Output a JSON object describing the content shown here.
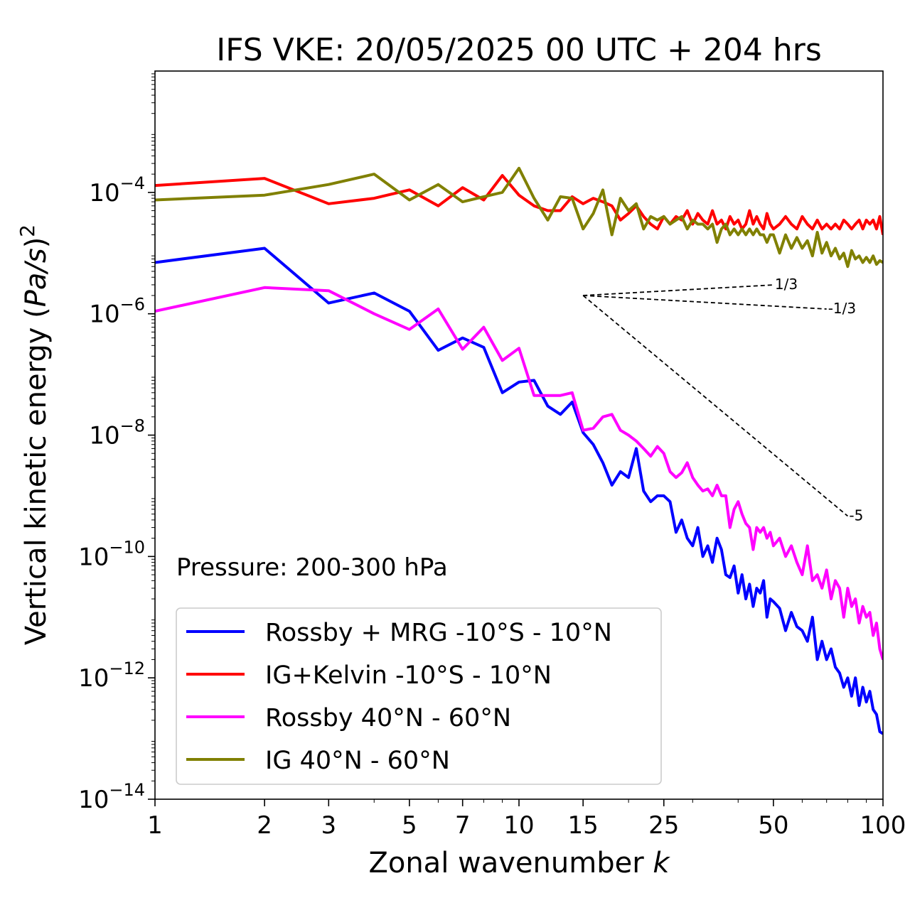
{
  "chart_data": {
    "type": "line",
    "title": "IFS VKE: 20/05/2025 00 UTC + 204 hrs",
    "xlabel": "Zonal wavenumber k",
    "ylabel": "Vertical kinetic energy (Pa/s)²",
    "xscale": "log",
    "yscale": "log",
    "xlim": [
      1,
      100
    ],
    "ylim": [
      1e-14,
      0.01
    ],
    "x_ticks": [
      1,
      2,
      3,
      5,
      7,
      10,
      15,
      25,
      50,
      100
    ],
    "y_ticks": [
      1e-14,
      1e-12,
      1e-10,
      1e-08,
      1e-06,
      0.0001
    ],
    "y_tick_labels": [
      {
        "base": "10",
        "exp": "−14"
      },
      {
        "base": "10",
        "exp": "−12"
      },
      {
        "base": "10",
        "exp": "−10"
      },
      {
        "base": "10",
        "exp": "−8"
      },
      {
        "base": "10",
        "exp": "−6"
      },
      {
        "base": "10",
        "exp": "−4"
      }
    ],
    "grid": false,
    "legend_position": "bottom-left",
    "annotation": "Pressure: 200-300 hPa",
    "reference_lines": [
      {
        "label": "1/3",
        "slope": 0.3333,
        "k_start": 15,
        "k_end": 50,
        "e_start": 2e-06
      },
      {
        "label": "-1/3",
        "slope": -0.3333,
        "k_start": 15,
        "k_end": 70,
        "e_start": 2e-06
      },
      {
        "label": "-5",
        "slope": -5,
        "k_start": 15,
        "k_end": 80,
        "e_start": 2e-06
      }
    ],
    "series": [
      {
        "name": "Rossby + MRG -10°S - 10°N",
        "color": "#0000ff",
        "points": [
          [
            1,
            7e-06
          ],
          [
            2,
            1.2e-05
          ],
          [
            3,
            1.5e-06
          ],
          [
            4,
            2.2e-06
          ],
          [
            5,
            1.1e-06
          ],
          [
            6,
            2.5e-07
          ],
          [
            7,
            4e-07
          ],
          [
            8,
            2.8e-07
          ],
          [
            9,
            5e-08
          ],
          [
            10,
            7.5e-08
          ],
          [
            11,
            8e-08
          ],
          [
            12,
            3e-08
          ],
          [
            13,
            2.2e-08
          ],
          [
            14,
            3.5e-08
          ],
          [
            15,
            1.1e-08
          ],
          [
            16,
            7e-09
          ],
          [
            17,
            3.5e-09
          ],
          [
            18,
            1.5e-09
          ],
          [
            19,
            2.5e-09
          ],
          [
            20,
            2e-09
          ],
          [
            21,
            6e-09
          ],
          [
            22,
            1.2e-09
          ],
          [
            23,
            8e-10
          ],
          [
            24,
            1e-09
          ],
          [
            25,
            1e-09
          ],
          [
            26,
            8e-10
          ],
          [
            27,
            2.5e-10
          ],
          [
            28,
            4e-10
          ],
          [
            29,
            2e-10
          ],
          [
            30,
            1.5e-10
          ],
          [
            31,
            3e-10
          ],
          [
            32,
            1e-10
          ],
          [
            33,
            1.5e-10
          ],
          [
            34,
            8e-11
          ],
          [
            35,
            2e-10
          ],
          [
            36,
            1.3e-10
          ],
          [
            37,
            5e-11
          ],
          [
            38,
            4.5e-11
          ],
          [
            39,
            7e-11
          ],
          [
            40,
            2.5e-11
          ],
          [
            41,
            5e-11
          ],
          [
            42,
            2e-11
          ],
          [
            43,
            3.5e-11
          ],
          [
            44,
            1.5e-11
          ],
          [
            45,
            3e-11
          ],
          [
            46,
            2.5e-11
          ],
          [
            47,
            4e-11
          ],
          [
            48,
            1e-11
          ],
          [
            49,
            2e-11
          ],
          [
            50,
            1.8e-11
          ],
          [
            52,
            1.4e-11
          ],
          [
            54,
            6e-12
          ],
          [
            56,
            1.2e-11
          ],
          [
            58,
            7e-12
          ],
          [
            60,
            6e-12
          ],
          [
            62,
            4e-12
          ],
          [
            64,
            1e-11
          ],
          [
            66,
            2e-12
          ],
          [
            68,
            4e-12
          ],
          [
            70,
            2e-12
          ],
          [
            72,
            3e-12
          ],
          [
            74,
            1.5e-12
          ],
          [
            76,
            1.2e-12
          ],
          [
            78,
            7e-13
          ],
          [
            80,
            1e-12
          ],
          [
            82,
            5e-13
          ],
          [
            84,
            1e-12
          ],
          [
            86,
            3.5e-13
          ],
          [
            88,
            7e-13
          ],
          [
            90,
            4e-13
          ],
          [
            92,
            6e-13
          ],
          [
            94,
            3e-13
          ],
          [
            96,
            2.5e-13
          ],
          [
            98,
            1.3e-13
          ],
          [
            100,
            1.2e-13
          ]
        ]
      },
      {
        "name": "IG+Kelvin -10°S - 10°N",
        "color": "#ff0000",
        "points": [
          [
            1,
            0.00013
          ],
          [
            2,
            0.00017
          ],
          [
            3,
            6.5e-05
          ],
          [
            4,
            8e-05
          ],
          [
            5,
            0.00011
          ],
          [
            6,
            6e-05
          ],
          [
            7,
            0.00012
          ],
          [
            8,
            7.5e-05
          ],
          [
            9,
            0.00019
          ],
          [
            10,
            9e-05
          ],
          [
            11,
            6e-05
          ],
          [
            12,
            5e-05
          ],
          [
            13,
            5e-05
          ],
          [
            14,
            8.5e-05
          ],
          [
            15,
            6.5e-05
          ],
          [
            16,
            8e-05
          ],
          [
            17,
            7e-05
          ],
          [
            18,
            6e-05
          ],
          [
            19,
            3.5e-05
          ],
          [
            20,
            4.5e-05
          ],
          [
            21,
            6e-05
          ],
          [
            22,
            4e-05
          ],
          [
            23,
            3e-05
          ],
          [
            24,
            2.5e-05
          ],
          [
            25,
            4e-05
          ],
          [
            26,
            3e-05
          ],
          [
            27,
            4e-05
          ],
          [
            28,
            3.5e-05
          ],
          [
            29,
            5e-05
          ],
          [
            30,
            3e-05
          ],
          [
            31,
            4.5e-05
          ],
          [
            32,
            3.5e-05
          ],
          [
            33,
            3e-05
          ],
          [
            34,
            5e-05
          ],
          [
            35,
            3e-05
          ],
          [
            36,
            3.5e-05
          ],
          [
            37,
            2.5e-05
          ],
          [
            38,
            4e-05
          ],
          [
            39,
            3e-05
          ],
          [
            40,
            3.5e-05
          ],
          [
            41,
            2.5e-05
          ],
          [
            42,
            3e-05
          ],
          [
            43,
            5e-05
          ],
          [
            44,
            3e-05
          ],
          [
            45,
            4e-05
          ],
          [
            46,
            3e-05
          ],
          [
            47,
            2.5e-05
          ],
          [
            48,
            4.5e-05
          ],
          [
            49,
            3e-05
          ],
          [
            50,
            2.5e-05
          ],
          [
            52,
            3e-05
          ],
          [
            54,
            4e-05
          ],
          [
            56,
            3e-05
          ],
          [
            58,
            2.5e-05
          ],
          [
            60,
            4e-05
          ],
          [
            62,
            3e-05
          ],
          [
            64,
            2.5e-05
          ],
          [
            66,
            3.5e-05
          ],
          [
            68,
            2.5e-05
          ],
          [
            70,
            3e-05
          ],
          [
            72,
            2.5e-05
          ],
          [
            74,
            3e-05
          ],
          [
            76,
            2.5e-05
          ],
          [
            78,
            3.5e-05
          ],
          [
            80,
            3e-05
          ],
          [
            82,
            2.5e-05
          ],
          [
            84,
            3e-05
          ],
          [
            86,
            3.5e-05
          ],
          [
            88,
            2.5e-05
          ],
          [
            90,
            3.5e-05
          ],
          [
            92,
            3e-05
          ],
          [
            94,
            3.5e-05
          ],
          [
            96,
            2.5e-05
          ],
          [
            98,
            4e-05
          ],
          [
            100,
            2e-05
          ]
        ]
      },
      {
        "name": "Rossby 40°N - 60°N",
        "color": "#ff00ff",
        "points": [
          [
            1,
            1.1e-06
          ],
          [
            2,
            2.7e-06
          ],
          [
            3,
            2.4e-06
          ],
          [
            4,
            1e-06
          ],
          [
            5,
            5.5e-07
          ],
          [
            6,
            1.2e-06
          ],
          [
            7,
            2.6e-07
          ],
          [
            8,
            6e-07
          ],
          [
            9,
            1.7e-07
          ],
          [
            10,
            2.7e-07
          ],
          [
            11,
            4.5e-08
          ],
          [
            12,
            4.5e-08
          ],
          [
            13,
            4.5e-08
          ],
          [
            14,
            5e-08
          ],
          [
            15,
            1.2e-08
          ],
          [
            16,
            1.3e-08
          ],
          [
            17,
            2e-08
          ],
          [
            18,
            2.2e-08
          ],
          [
            19,
            1.2e-08
          ],
          [
            20,
            1e-08
          ],
          [
            21,
            8e-09
          ],
          [
            22,
            6e-09
          ],
          [
            23,
            4.5e-09
          ],
          [
            24,
            6.5e-09
          ],
          [
            25,
            5e-09
          ],
          [
            26,
            2.5e-09
          ],
          [
            27,
            2e-09
          ],
          [
            28,
            2.4e-09
          ],
          [
            29,
            3.5e-09
          ],
          [
            30,
            2e-09
          ],
          [
            31,
            1.5e-09
          ],
          [
            32,
            1.2e-09
          ],
          [
            33,
            1.3e-09
          ],
          [
            34,
            1e-09
          ],
          [
            35,
            1.5e-09
          ],
          [
            36,
            1e-09
          ],
          [
            37,
            1e-09
          ],
          [
            38,
            3e-10
          ],
          [
            39,
            6e-10
          ],
          [
            40,
            8e-10
          ],
          [
            41,
            5e-10
          ],
          [
            42,
            3.5e-10
          ],
          [
            43,
            3e-10
          ],
          [
            44,
            1.3e-10
          ],
          [
            45,
            3e-10
          ],
          [
            46,
            2.5e-10
          ],
          [
            47,
            3e-10
          ],
          [
            48,
            2e-10
          ],
          [
            49,
            2.5e-10
          ],
          [
            50,
            1.5e-10
          ],
          [
            52,
            2e-10
          ],
          [
            54,
            1e-10
          ],
          [
            56,
            1.5e-10
          ],
          [
            58,
            8e-11
          ],
          [
            60,
            5e-11
          ],
          [
            62,
            1.5e-10
          ],
          [
            64,
            4e-11
          ],
          [
            66,
            5e-11
          ],
          [
            68,
            3e-11
          ],
          [
            70,
            6e-11
          ],
          [
            72,
            2e-11
          ],
          [
            74,
            4e-11
          ],
          [
            76,
            3e-11
          ],
          [
            78,
            1e-11
          ],
          [
            80,
            3e-11
          ],
          [
            82,
            1.5e-11
          ],
          [
            84,
            2e-11
          ],
          [
            86,
            8e-12
          ],
          [
            88,
            1.5e-11
          ],
          [
            90,
            1e-11
          ],
          [
            92,
            1.2e-11
          ],
          [
            94,
            5e-12
          ],
          [
            96,
            8e-12
          ],
          [
            98,
            3e-12
          ],
          [
            100,
            2e-12
          ]
        ]
      },
      {
        "name": "IG 40°N - 60°N",
        "color": "#808000",
        "points": [
          [
            1,
            7.5e-05
          ],
          [
            2,
            9e-05
          ],
          [
            3,
            0.000135
          ],
          [
            4,
            0.0002
          ],
          [
            5,
            7.5e-05
          ],
          [
            6,
            0.000135
          ],
          [
            7,
            7e-05
          ],
          [
            8,
            8.5e-05
          ],
          [
            9,
            0.0001
          ],
          [
            10,
            0.00025
          ],
          [
            11,
            8e-05
          ],
          [
            12,
            3.5e-05
          ],
          [
            13,
            8.5e-05
          ],
          [
            14,
            8e-05
          ],
          [
            15,
            2.5e-05
          ],
          [
            16,
            4.5e-05
          ],
          [
            17,
            0.00011
          ],
          [
            18,
            2e-05
          ],
          [
            19,
            8e-05
          ],
          [
            20,
            5e-05
          ],
          [
            21,
            6.5e-05
          ],
          [
            22,
            2.5e-05
          ],
          [
            23,
            4e-05
          ],
          [
            24,
            3.5e-05
          ],
          [
            25,
            4e-05
          ],
          [
            26,
            3e-05
          ],
          [
            27,
            3.5e-05
          ],
          [
            28,
            4e-05
          ],
          [
            29,
            2.5e-05
          ],
          [
            30,
            3.5e-05
          ],
          [
            31,
            3e-05
          ],
          [
            32,
            3e-05
          ],
          [
            33,
            2.5e-05
          ],
          [
            34,
            3e-05
          ],
          [
            35,
            1.5e-05
          ],
          [
            36,
            2.5e-05
          ],
          [
            37,
            3e-05
          ],
          [
            38,
            2e-05
          ],
          [
            39,
            2.5e-05
          ],
          [
            40,
            2e-05
          ],
          [
            41,
            2.5e-05
          ],
          [
            42,
            2e-05
          ],
          [
            43,
            2.5e-05
          ],
          [
            44,
            2e-05
          ],
          [
            45,
            2.5e-05
          ],
          [
            46,
            2e-05
          ],
          [
            47,
            2e-05
          ],
          [
            48,
            1.5e-05
          ],
          [
            49,
            2e-05
          ],
          [
            50,
            2e-05
          ],
          [
            52,
            1e-05
          ],
          [
            54,
            2e-05
          ],
          [
            56,
            1.2e-05
          ],
          [
            58,
            1.8e-05
          ],
          [
            60,
            1.2e-05
          ],
          [
            62,
            1.6e-05
          ],
          [
            64,
            9e-06
          ],
          [
            66,
            2.2e-05
          ],
          [
            68,
            1e-05
          ],
          [
            70,
            1.5e-05
          ],
          [
            72,
            9e-06
          ],
          [
            74,
            1.2e-05
          ],
          [
            76,
            8e-06
          ],
          [
            78,
            1e-05
          ],
          [
            80,
            6e-06
          ],
          [
            82,
            1.1e-05
          ],
          [
            84,
            8e-06
          ],
          [
            86,
            9e-06
          ],
          [
            88,
            7e-06
          ],
          [
            90,
            8.5e-06
          ],
          [
            92,
            7e-06
          ],
          [
            94,
            9e-06
          ],
          [
            96,
            6.5e-06
          ],
          [
            98,
            7.5e-06
          ],
          [
            100,
            7e-06
          ]
        ]
      }
    ]
  }
}
